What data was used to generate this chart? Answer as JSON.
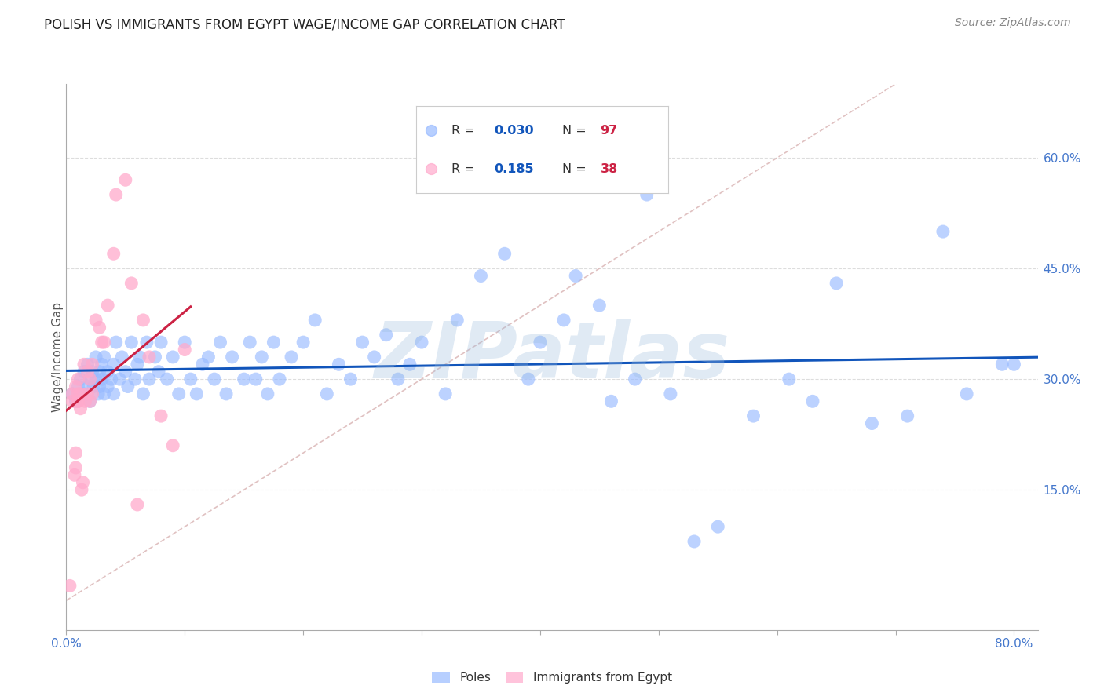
{
  "title": "POLISH VS IMMIGRANTS FROM EGYPT WAGE/INCOME GAP CORRELATION CHART",
  "source": "Source: ZipAtlas.com",
  "ylabel": "Wage/Income Gap",
  "xlim": [
    0.0,
    0.82
  ],
  "ylim": [
    -0.04,
    0.7
  ],
  "yticks_right": [
    0.15,
    0.3,
    0.45,
    0.6
  ],
  "yticklabels_right": [
    "15.0%",
    "30.0%",
    "45.0%",
    "60.0%"
  ],
  "blue_color": "#99bbff",
  "pink_color": "#ffaacc",
  "blue_line_color": "#1155bb",
  "pink_line_color": "#cc2244",
  "diag_color": "#ddbbbb",
  "watermark": "ZIPatlas",
  "watermark_color": "#99bbdd",
  "blue_x": [
    0.005,
    0.008,
    0.01,
    0.012,
    0.015,
    0.015,
    0.018,
    0.018,
    0.02,
    0.02,
    0.022,
    0.023,
    0.025,
    0.025,
    0.027,
    0.028,
    0.028,
    0.03,
    0.03,
    0.032,
    0.032,
    0.035,
    0.035,
    0.038,
    0.04,
    0.04,
    0.042,
    0.045,
    0.047,
    0.05,
    0.052,
    0.055,
    0.058,
    0.06,
    0.062,
    0.065,
    0.068,
    0.07,
    0.075,
    0.078,
    0.08,
    0.085,
    0.09,
    0.095,
    0.1,
    0.105,
    0.11,
    0.115,
    0.12,
    0.125,
    0.13,
    0.135,
    0.14,
    0.15,
    0.155,
    0.16,
    0.165,
    0.17,
    0.175,
    0.18,
    0.19,
    0.2,
    0.21,
    0.22,
    0.23,
    0.24,
    0.25,
    0.26,
    0.27,
    0.28,
    0.29,
    0.3,
    0.32,
    0.33,
    0.35,
    0.37,
    0.39,
    0.4,
    0.42,
    0.43,
    0.45,
    0.46,
    0.48,
    0.49,
    0.51,
    0.53,
    0.55,
    0.58,
    0.61,
    0.63,
    0.65,
    0.68,
    0.71,
    0.74,
    0.76,
    0.79,
    0.8
  ],
  "blue_y": [
    0.28,
    0.27,
    0.29,
    0.3,
    0.28,
    0.31,
    0.29,
    0.32,
    0.27,
    0.3,
    0.31,
    0.29,
    0.3,
    0.33,
    0.28,
    0.31,
    0.29,
    0.3,
    0.32,
    0.28,
    0.33,
    0.31,
    0.29,
    0.3,
    0.32,
    0.28,
    0.35,
    0.3,
    0.33,
    0.31,
    0.29,
    0.35,
    0.3,
    0.32,
    0.33,
    0.28,
    0.35,
    0.3,
    0.33,
    0.31,
    0.35,
    0.3,
    0.33,
    0.28,
    0.35,
    0.3,
    0.28,
    0.32,
    0.33,
    0.3,
    0.35,
    0.28,
    0.33,
    0.3,
    0.35,
    0.3,
    0.33,
    0.28,
    0.35,
    0.3,
    0.33,
    0.35,
    0.38,
    0.28,
    0.32,
    0.3,
    0.35,
    0.33,
    0.36,
    0.3,
    0.32,
    0.35,
    0.28,
    0.38,
    0.44,
    0.47,
    0.3,
    0.35,
    0.38,
    0.44,
    0.4,
    0.27,
    0.3,
    0.55,
    0.28,
    0.08,
    0.1,
    0.25,
    0.3,
    0.27,
    0.43,
    0.24,
    0.25,
    0.5,
    0.28,
    0.32,
    0.32
  ],
  "pink_x": [
    0.003,
    0.005,
    0.005,
    0.007,
    0.008,
    0.008,
    0.008,
    0.01,
    0.01,
    0.01,
    0.01,
    0.012,
    0.012,
    0.013,
    0.014,
    0.015,
    0.016,
    0.018,
    0.018,
    0.02,
    0.02,
    0.022,
    0.022,
    0.025,
    0.028,
    0.03,
    0.032,
    0.035,
    0.04,
    0.042,
    0.05,
    0.055,
    0.06,
    0.065,
    0.07,
    0.08,
    0.09,
    0.1
  ],
  "pink_y": [
    0.02,
    0.27,
    0.28,
    0.17,
    0.18,
    0.29,
    0.2,
    0.27,
    0.28,
    0.3,
    0.27,
    0.26,
    0.28,
    0.15,
    0.16,
    0.32,
    0.27,
    0.28,
    0.31,
    0.27,
    0.3,
    0.28,
    0.32,
    0.38,
    0.37,
    0.35,
    0.35,
    0.4,
    0.47,
    0.55,
    0.57,
    0.43,
    0.13,
    0.38,
    0.33,
    0.25,
    0.21,
    0.34
  ]
}
